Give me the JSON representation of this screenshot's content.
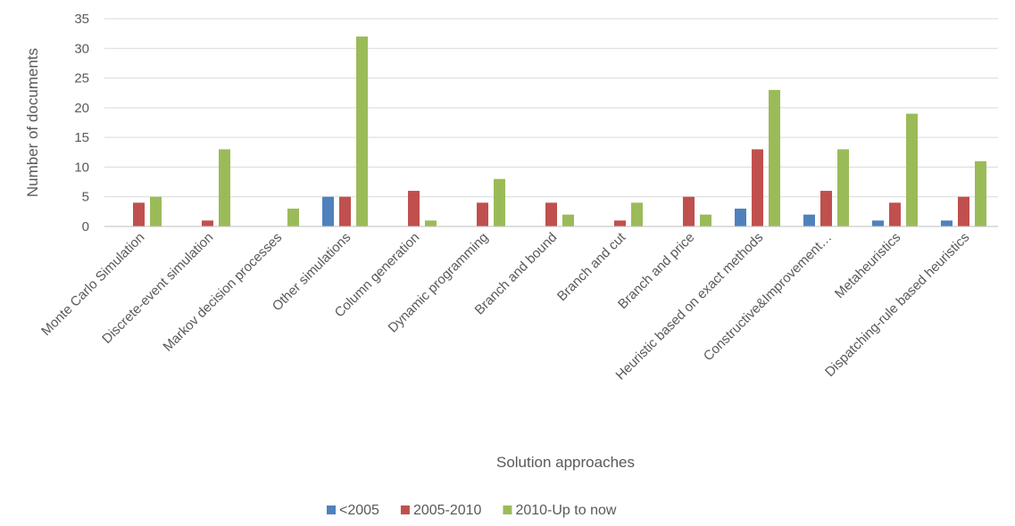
{
  "chart_data": {
    "type": "bar",
    "title": "",
    "xlabel": "Solution approaches",
    "ylabel": "Number of documents",
    "ylim": [
      0,
      35
    ],
    "yticks": [
      0,
      5,
      10,
      15,
      20,
      25,
      30,
      35
    ],
    "grid": true,
    "legend_position": "bottom",
    "categories": [
      "Monte Carlo Simulation",
      "Discrete-event simulation",
      "Markov decision processes",
      "Other simulations",
      "Column generation",
      "Dynamic programming",
      "Branch and bound",
      "Branch and cut",
      "Branch and price",
      "Heuristic based on exact methods",
      "Constructive&Improvement…",
      "Metaheuristics",
      "Dispatching-rule based   heuristics"
    ],
    "series": [
      {
        "name": "<2005",
        "color": "#4f81bd",
        "values": [
          0,
          0,
          0,
          5,
          0,
          0,
          0,
          0,
          0,
          3,
          2,
          1,
          1
        ]
      },
      {
        "name": "2005-2010",
        "color": "#c0504d",
        "values": [
          4,
          1,
          0,
          5,
          6,
          4,
          4,
          1,
          5,
          13,
          6,
          4,
          5
        ]
      },
      {
        "name": "2010-Up to now",
        "color": "#9bbb59",
        "values": [
          5,
          13,
          3,
          32,
          1,
          8,
          2,
          4,
          2,
          23,
          13,
          19,
          11
        ]
      }
    ]
  }
}
